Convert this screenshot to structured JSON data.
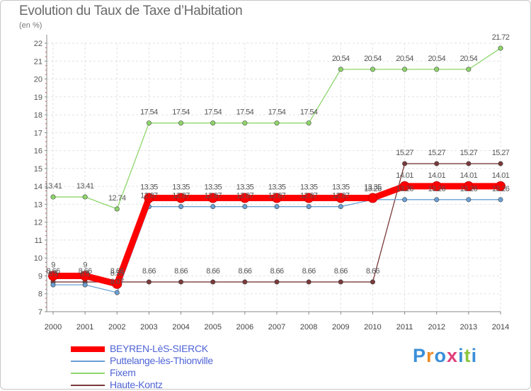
{
  "chart_data": {
    "type": "line",
    "title": "Evolution du Taux de Taxe d’Habitation",
    "subtitle": "(en %)",
    "xlabel": "",
    "ylabel": "",
    "ylim": [
      7,
      22
    ],
    "yticks": [
      "7",
      "8",
      "9",
      "10",
      "11",
      "12",
      "13",
      "14",
      "15",
      "16",
      "17",
      "18",
      "19",
      "20",
      "21",
      "22"
    ],
    "categories": [
      "2000",
      "2001",
      "2002",
      "2003",
      "2004",
      "2005",
      "2006",
      "2007",
      "2008",
      "2009",
      "2010",
      "2011",
      "2012",
      "2013",
      "2014"
    ],
    "grid": true,
    "legend_position": "bottom-left",
    "series": [
      {
        "name": "BEYREN-LèS-SIERCK",
        "color": "#ff0000",
        "values": [
          9,
          9,
          8.55,
          13.35,
          13.35,
          13.35,
          13.35,
          13.35,
          13.35,
          13.35,
          13.35,
          14.01,
          14.01,
          14.01,
          14.01
        ],
        "labels": [
          "9",
          "9",
          "8.55",
          "13.35",
          "13.35",
          "13.35",
          "13.35",
          "13.35",
          "13.35",
          "13.35",
          "13.35",
          "14.01",
          "14.01",
          "14.01",
          "14.01"
        ]
      },
      {
        "name": "Puttelange-lès-Thionville",
        "color": "#6a9fd4",
        "values": [
          8.5,
          8.5,
          8.07,
          12.87,
          12.87,
          12.87,
          12.87,
          12.87,
          12.87,
          12.87,
          13.26,
          13.26,
          13.26,
          13.26,
          13.26
        ],
        "labels": [
          "8.5",
          "8.5",
          "8.07",
          "12.87",
          "12.87",
          "12.87",
          "12.87",
          "12.87",
          "12.87",
          "12.87",
          "13.26",
          "13.26",
          "13.26",
          "13.26",
          "13.26"
        ]
      },
      {
        "name": "Fixem",
        "color": "#8ed66b",
        "values": [
          13.41,
          13.41,
          12.74,
          17.54,
          17.54,
          17.54,
          17.54,
          17.54,
          17.54,
          20.54,
          20.54,
          20.54,
          20.54,
          20.54,
          21.72
        ],
        "labels": [
          "13.41",
          "13.41",
          "12.74",
          "17.54",
          "17.54",
          "17.54",
          "17.54",
          "17.54",
          "17.54",
          "20.54",
          "20.54",
          "20.54",
          "20.54",
          "20.54",
          "21.72"
        ]
      },
      {
        "name": "Haute-Kontz",
        "color": "#7a3a3a",
        "values": [
          8.66,
          8.66,
          8.66,
          8.66,
          8.66,
          8.66,
          8.66,
          8.66,
          8.66,
          8.66,
          8.66,
          15.27,
          15.27,
          15.27,
          15.27
        ],
        "labels": [
          "8.66",
          "8.66",
          "8.66",
          "8.66",
          "8.66",
          "8.66",
          "8.66",
          "8.66",
          "8.66",
          "8.66",
          "8.66",
          "15.27",
          "15.27",
          "15.27",
          "15.27"
        ]
      }
    ]
  },
  "brand": {
    "letters": [
      "P",
      "r",
      "o",
      "x",
      "i",
      "t",
      "i"
    ],
    "colors": [
      "#3a8fd8",
      "#f08a24",
      "#3a8fd8",
      "#e0407a",
      "#3a8fd8",
      "#8cc63f",
      "#3a8fd8"
    ]
  }
}
